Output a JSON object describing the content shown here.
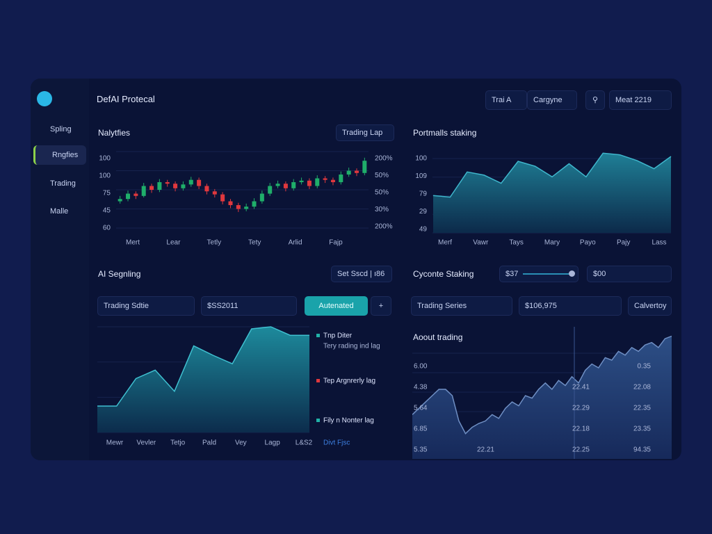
{
  "sidebar": {
    "items": [
      "Spling",
      "Rngfies",
      "Trading",
      "Malle"
    ]
  },
  "header": {
    "title": "DefAI Protecal",
    "filter_a": "Trai A",
    "filter_b": "Cargyne",
    "date": "Meat 2219"
  },
  "analytics": {
    "title": "Nalytfies",
    "dropdown": "Trading  Lap",
    "y_labels_left": [
      "100",
      "100",
      "75",
      "45",
      "60"
    ],
    "y_labels_right": [
      "200%",
      "50%",
      "50%",
      "30%",
      "200%"
    ],
    "x_labels": [
      "Mert",
      "Lear",
      "Tetly",
      "Tety",
      "Arlid",
      "Fajp"
    ],
    "candles": [
      [
        35,
        42,
        32,
        38
      ],
      [
        38,
        49,
        35,
        45
      ],
      [
        45,
        48,
        38,
        42
      ],
      [
        42,
        59,
        40,
        55
      ],
      [
        55,
        58,
        46,
        50
      ],
      [
        50,
        64,
        47,
        60
      ],
      [
        60,
        63,
        54,
        58
      ],
      [
        58,
        61,
        48,
        52
      ],
      [
        52,
        61,
        49,
        57
      ],
      [
        57,
        67,
        54,
        63
      ],
      [
        63,
        66,
        51,
        55
      ],
      [
        55,
        58,
        44,
        48
      ],
      [
        48,
        51,
        40,
        44
      ],
      [
        44,
        47,
        31,
        35
      ],
      [
        35,
        38,
        26,
        30
      ],
      [
        30,
        33,
        21,
        25
      ],
      [
        25,
        32,
        22,
        28
      ],
      [
        28,
        39,
        25,
        35
      ],
      [
        35,
        49,
        32,
        45
      ],
      [
        45,
        59,
        42,
        55
      ],
      [
        55,
        62,
        52,
        58
      ],
      [
        58,
        61,
        48,
        52
      ],
      [
        52,
        64,
        49,
        60
      ],
      [
        60,
        66,
        57,
        62
      ],
      [
        62,
        65,
        51,
        55
      ],
      [
        55,
        69,
        52,
        65
      ],
      [
        65,
        68,
        59,
        63
      ],
      [
        63,
        66,
        56,
        60
      ],
      [
        60,
        74,
        57,
        70
      ],
      [
        70,
        79,
        67,
        75
      ],
      [
        75,
        78,
        68,
        72
      ],
      [
        72,
        92,
        69,
        88
      ]
    ]
  },
  "portfolio": {
    "title": "Portmalls staking",
    "y_labels": [
      "100",
      "109",
      "79",
      "29",
      "49"
    ],
    "x_labels": [
      "Merf",
      "Vawr",
      "Tays",
      "Mary",
      "Payo",
      "Pajy",
      "Lass"
    ],
    "values": [
      46,
      44,
      75,
      71,
      61,
      88,
      82,
      69,
      85,
      69,
      98,
      96,
      89,
      79,
      94
    ]
  },
  "signal": {
    "title": "AI Segnling",
    "button": "Set Sscd  |  ı86",
    "dropdown": "Trading Sdtie",
    "input": "$SS2011",
    "action": "Autenated",
    "values": [
      25,
      25,
      51,
      59,
      39,
      82,
      73,
      65,
      98,
      100,
      92,
      92
    ],
    "x_labels": [
      "Mewr",
      "Vevler",
      "Tetjo",
      "Pald",
      "Vey",
      "Lagp",
      "L&S2"
    ],
    "legend": [
      {
        "label": "Tnp Diter",
        "desc": "Tery rading ind lag"
      },
      {
        "label": "Tep Argnrerly lag"
      },
      {
        "label": "Fily n Nonter lag"
      }
    ],
    "link": "Divt Fjsc"
  },
  "staking": {
    "title": "Cyconte Staking",
    "slider_value": "$37",
    "input": "$00",
    "dropdown": "Trading Series",
    "amount": "$106,975",
    "button": "Calvertoy",
    "chart_title": "Aoout trading",
    "values": [
      35,
      40,
      45,
      50,
      55,
      55,
      50,
      30,
      20,
      25,
      28,
      30,
      35,
      32,
      40,
      45,
      42,
      50,
      48,
      55,
      60,
      55,
      62,
      58,
      65,
      60,
      70,
      75,
      72,
      80,
      78,
      85,
      82,
      88,
      85,
      90,
      92,
      88,
      95,
      97
    ],
    "labels": {
      "left": [
        "6.00",
        "4.38",
        "5.64",
        "6.85",
        "5.35"
      ],
      "mid": [
        "22.41",
        "22.29",
        "22.18",
        "22.25"
      ],
      "right": [
        "0.35",
        "22.08",
        "22.35",
        "23.35",
        "94.35"
      ],
      "bottom": [
        "22.21"
      ]
    }
  }
}
